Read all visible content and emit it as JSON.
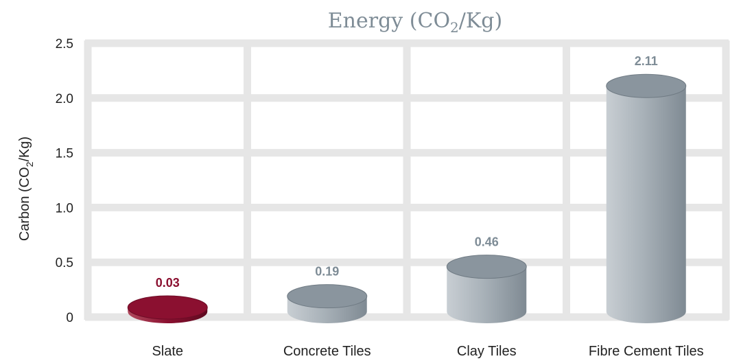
{
  "chart_data": {
    "type": "bar",
    "title": "Energy (CO2/Kg)",
    "title_parts": [
      "Energy (CO",
      "2",
      "/Kg)"
    ],
    "ylabel": "Carbon (CO2/Kg)",
    "ylabel_parts": [
      "Carbon (CO",
      "2",
      "/Kg)"
    ],
    "categories": [
      "Slate",
      "Concrete Tiles",
      "Clay Tiles",
      "Fibre Cement Tiles"
    ],
    "values": [
      0.03,
      0.19,
      0.46,
      2.11
    ],
    "value_labels": [
      "0.03",
      "0.19",
      "0.46",
      "2.11"
    ],
    "yticks": [
      0,
      0.5,
      1.0,
      1.5,
      2.0,
      2.5
    ],
    "ytick_labels": [
      "0",
      "0.5",
      "1.0",
      "1.5",
      "2.0",
      "2.5"
    ],
    "ylim": [
      0,
      2.5
    ],
    "grid": true,
    "colors": {
      "highlight": "#8b1030",
      "bar": "#8a959e",
      "grid": "#e6e6e6",
      "label_grey": "#7e8c96"
    },
    "highlight_index": 0
  }
}
